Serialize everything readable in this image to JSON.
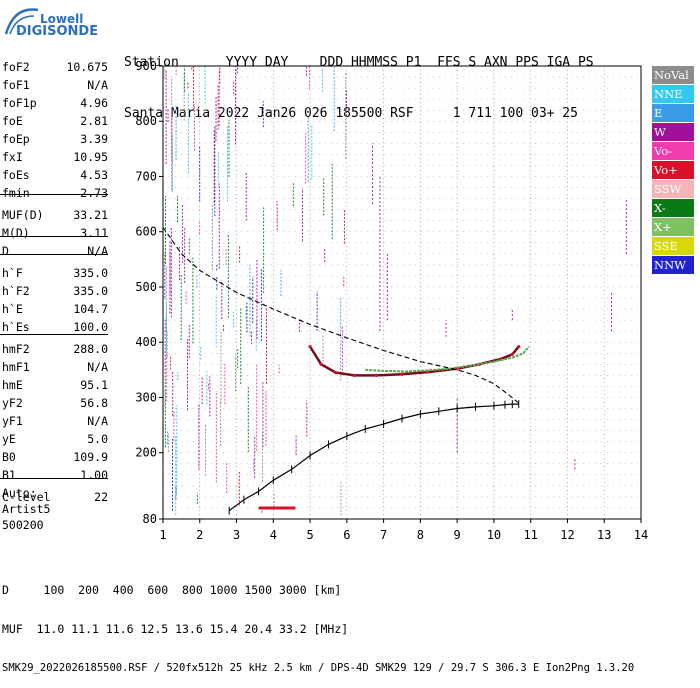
{
  "logo": {
    "line1": "Lowell",
    "line2": "DIGISONDE"
  },
  "header": {
    "row1": "Station      YYYY DAY    DDD HHMMSS P1  FFS S AXN PPS IGA PS",
    "row2": "Santa Maria 2022 Jan26 026 185500 RSF     1 711 100 03+ 25"
  },
  "params": [
    {
      "name": "foF2",
      "value": "10.675"
    },
    {
      "name": "foF1",
      "value": "N/A"
    },
    {
      "name": "foF1p",
      "value": "4.96"
    },
    {
      "name": "foE",
      "value": "2.81"
    },
    {
      "name": "foEp",
      "value": "3.39"
    },
    {
      "name": "fxI",
      "value": "10.95"
    },
    {
      "name": "foEs",
      "value": "4.53"
    },
    {
      "name": "fmin",
      "value": "2.73"
    },
    {
      "name": "MUF(D)",
      "value": "33.21"
    },
    {
      "name": "M(D)",
      "value": "3.11"
    },
    {
      "name": "D",
      "value": "N/A"
    },
    {
      "name": "h`F",
      "value": "335.0"
    },
    {
      "name": "h`F2",
      "value": "335.0"
    },
    {
      "name": "h`E",
      "value": "104.7"
    },
    {
      "name": "h`Es",
      "value": "100.0"
    },
    {
      "name": "hmF2",
      "value": "288.0"
    },
    {
      "name": "hmF1",
      "value": "N/A"
    },
    {
      "name": "hmE",
      "value": "95.1"
    },
    {
      "name": "yF2",
      "value": "56.8"
    },
    {
      "name": "yF1",
      "value": "N/A"
    },
    {
      "name": "yE",
      "value": "5.0"
    },
    {
      "name": "B0",
      "value": "109.9"
    },
    {
      "name": "B1",
      "value": "1.00"
    },
    {
      "name": "C-level",
      "value": "22"
    }
  ],
  "auto": {
    "line1": "Auto:",
    "line2": "Artist5",
    "line3": "500200"
  },
  "legend": [
    {
      "label": "NoVal",
      "color": "#8c8c8c"
    },
    {
      "label": "NNE",
      "color": "#33c8f0"
    },
    {
      "label": "E",
      "color": "#3b9be8"
    },
    {
      "label": "W",
      "color": "#a0109a"
    },
    {
      "label": "Vo-",
      "color": "#f03cae"
    },
    {
      "label": "Vo+",
      "color": "#d8102a"
    },
    {
      "label": "SSW",
      "color": "#f5b5b8"
    },
    {
      "label": "X-",
      "color": "#0a7a16"
    },
    {
      "label": "X+",
      "color": "#7fc060"
    },
    {
      "label": "SSE",
      "color": "#d8d80a"
    },
    {
      "label": "NNW",
      "color": "#2222d0"
    }
  ],
  "footer": {
    "row1": "D     100  200  400  600  800 1000 1500 3000 [km]",
    "row2": "MUF  11.0 11.1 11.6 12.5 13.6 15.4 20.4 33.2 [MHz]",
    "row3": "SMK29_2022026185500.RSF / 520fx512h 25 kHz 2.5 km / DPS-4D SMK29 129 / 29.7 S 306.3 E Ion2Png 1.3.20"
  },
  "chart_data": {
    "type": "scatter",
    "xlim": [
      1,
      14
    ],
    "ylim": [
      80,
      900
    ],
    "x_ticks": [
      "1",
      "2",
      "3",
      "4",
      "5",
      "6",
      "7",
      "8",
      "9",
      "10",
      "11",
      "12",
      "13",
      "14"
    ],
    "y_ticks": [
      "80",
      "200",
      "300",
      "400",
      "500",
      "600",
      "700",
      "800",
      "900"
    ],
    "grid": true,
    "electron_density_profile": {
      "x": [
        2.8,
        3.2,
        3.6,
        4.0,
        4.5,
        5.0,
        5.5,
        6.0,
        6.5,
        7.0,
        7.5,
        8.0,
        8.5,
        9.0,
        9.5,
        10.0,
        10.3,
        10.5,
        10.675
      ],
      "y": [
        95,
        115,
        130,
        150,
        170,
        195,
        215,
        230,
        243,
        252,
        262,
        270,
        275,
        280,
        283,
        285,
        287,
        288,
        288
      ]
    },
    "virtual_height_curve": {
      "x": [
        1.0,
        1.5,
        2.0,
        3.0,
        4.0,
        5.0,
        6.0,
        7.0,
        8.0,
        9.0,
        9.5,
        10.0,
        10.4,
        10.675
      ],
      "y": [
        608,
        560,
        530,
        490,
        460,
        432,
        408,
        385,
        365,
        350,
        340,
        325,
        305,
        290
      ]
    },
    "f2_o_trace": {
      "x": [
        5.0,
        5.3,
        5.7,
        6.2,
        6.8,
        7.5,
        8.2,
        9.0,
        9.6,
        10.2,
        10.5,
        10.675
      ],
      "y": [
        392,
        360,
        345,
        340,
        340,
        342,
        346,
        352,
        360,
        370,
        378,
        392
      ]
    },
    "f2_x_trace": {
      "x": [
        6.5,
        7.0,
        7.6,
        8.2,
        8.8,
        9.4,
        10.0,
        10.5,
        10.8,
        10.95
      ],
      "y": [
        350,
        348,
        347,
        349,
        352,
        358,
        365,
        372,
        380,
        392
      ]
    },
    "es_trace": {
      "x": [
        3.6,
        3.8,
        4.0,
        4.2,
        4.4,
        4.6
      ],
      "y": [
        100,
        100,
        100,
        100,
        100,
        100
      ]
    }
  }
}
